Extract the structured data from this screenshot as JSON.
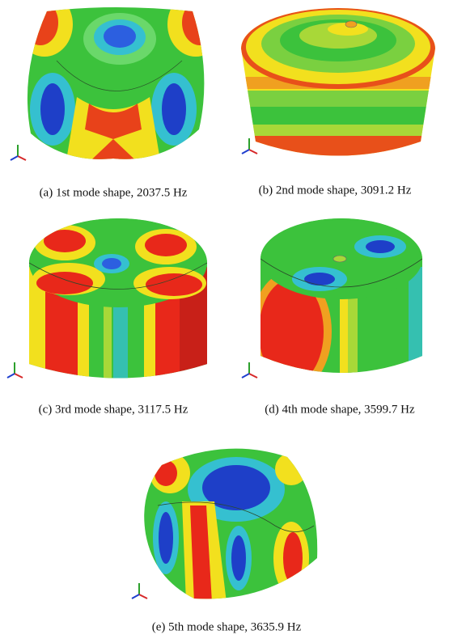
{
  "figures": [
    {
      "caption": "(a) 1st mode shape, 2037.5 Hz"
    },
    {
      "caption": "(b) 2nd mode shape, 3091.2 Hz"
    },
    {
      "caption": "(c) 3rd mode shape, 3117.5 Hz"
    },
    {
      "caption": "(d) 4th mode shape, 3599.7 Hz"
    },
    {
      "caption": "(e) 5th mode shape, 3635.9 Hz"
    }
  ]
}
